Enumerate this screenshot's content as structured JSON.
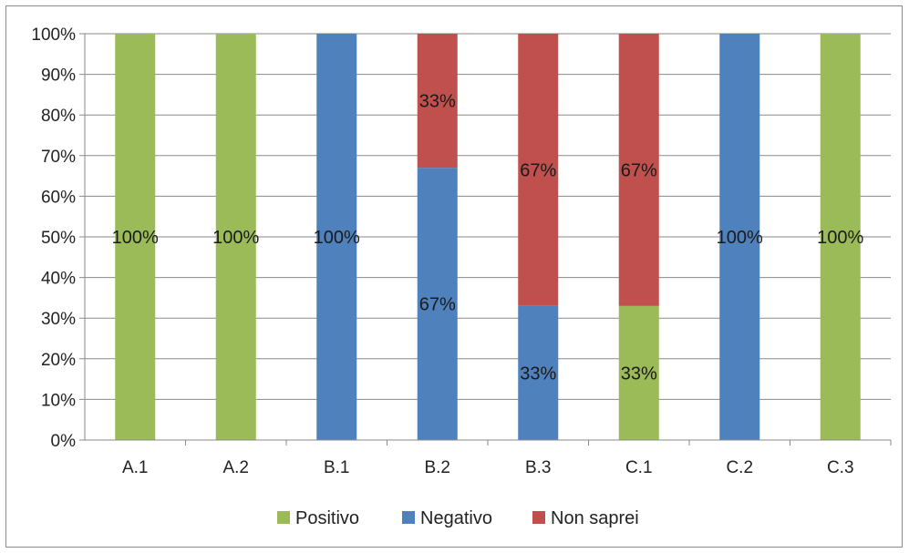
{
  "chart_data": {
    "type": "bar",
    "stacked": true,
    "percent_stacked": true,
    "categories": [
      "A.1",
      "A.2",
      "B.1",
      "B.2",
      "B.3",
      "C.1",
      "C.2",
      "C.3"
    ],
    "series": [
      {
        "name": "Positivo",
        "color": "#9BBB59",
        "values": [
          100,
          100,
          0,
          0,
          0,
          33,
          0,
          100
        ]
      },
      {
        "name": "Negativo",
        "color": "#4F81BD",
        "values": [
          0,
          0,
          100,
          67,
          33,
          0,
          100,
          0
        ]
      },
      {
        "name": "Non saprei",
        "color": "#C0504D",
        "values": [
          0,
          0,
          0,
          33,
          67,
          67,
          0,
          0
        ]
      }
    ],
    "data_label_suffix": "%",
    "ylim": [
      0,
      100
    ],
    "yticks": [
      "0%",
      "10%",
      "20%",
      "30%",
      "40%",
      "50%",
      "60%",
      "70%",
      "80%",
      "90%",
      "100%"
    ],
    "grid": true,
    "legend": "bottom",
    "title": "",
    "xlabel": "",
    "ylabel": ""
  }
}
